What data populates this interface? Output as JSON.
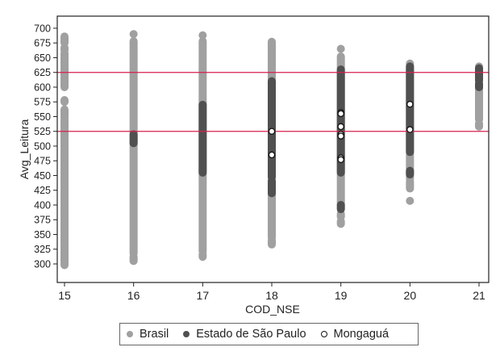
{
  "chart_data": {
    "type": "scatter",
    "title": "",
    "xlabel": "COD_NSE",
    "ylabel": "Avg_Leitura",
    "x_ticks": [
      15,
      16,
      17,
      18,
      19,
      20,
      21
    ],
    "y_ticks": [
      300,
      325,
      350,
      375,
      400,
      425,
      450,
      475,
      500,
      525,
      550,
      575,
      600,
      625,
      650,
      675,
      700
    ],
    "xlim": [
      14.895,
      21.14
    ],
    "ylim": [
      268.5,
      720.5
    ],
    "grid": false,
    "legend_position": "bottom",
    "reference_lines": [
      {
        "axis": "y",
        "value": 625,
        "color": "#d6204f"
      },
      {
        "axis": "y",
        "value": 525,
        "color": "#d6204f"
      }
    ],
    "series": [
      {
        "name": "Brasil",
        "color": "#a0a0a0",
        "marker": "filled-circle",
        "columns": [
          {
            "x": 15,
            "segments": [
              [
                298,
                340
              ],
              [
                340,
                545
              ],
              [
                548,
                562
              ],
              [
                575,
                578
              ],
              [
                600,
                658
              ],
              [
                663,
                667
              ],
              [
                675,
                686
              ]
            ]
          },
          {
            "x": 16,
            "segments": [
              [
                305,
                312
              ],
              [
                318,
                678
              ],
              [
                690,
                690
              ]
            ]
          },
          {
            "x": 17,
            "segments": [
              [
                312,
                316
              ],
              [
                322,
                678
              ],
              [
                688,
                688
              ]
            ]
          },
          {
            "x": 18,
            "segments": [
              [
                333,
                340
              ],
              [
                345,
                677
              ]
            ]
          },
          {
            "x": 19,
            "segments": [
              [
                368,
                372
              ],
              [
                380,
                385
              ],
              [
                400,
                652
              ],
              [
                665,
                665
              ]
            ]
          },
          {
            "x": 20,
            "segments": [
              [
                407,
                407
              ],
              [
                428,
                440
              ],
              [
                445,
                640
              ]
            ]
          },
          {
            "x": 21,
            "segments": [
              [
                533,
                538
              ],
              [
                545,
                635
              ]
            ]
          }
        ]
      },
      {
        "name": "Estado de São Paulo",
        "color": "#505050",
        "marker": "filled-circle",
        "columns": [
          {
            "x": 16,
            "segments": [
              [
                505,
                520
              ]
            ]
          },
          {
            "x": 17,
            "segments": [
              [
                455,
                570
              ]
            ]
          },
          {
            "x": 18,
            "segments": [
              [
                420,
                440
              ],
              [
                448,
                610
              ]
            ]
          },
          {
            "x": 19,
            "segments": [
              [
                393,
                400
              ],
              [
                455,
                630
              ]
            ]
          },
          {
            "x": 20,
            "segments": [
              [
                452,
                458
              ],
              [
                490,
                635
              ]
            ]
          },
          {
            "x": 21,
            "segments": [
              [
                600,
                605
              ],
              [
                612,
                632
              ]
            ]
          }
        ]
      },
      {
        "name": "Mongaguá",
        "color": "#ffffff",
        "marker": "hollow-circle",
        "points": [
          {
            "x": 18,
            "y": 525
          },
          {
            "x": 18,
            "y": 485
          },
          {
            "x": 19,
            "y": 557
          },
          {
            "x": 19,
            "y": 555
          },
          {
            "x": 19,
            "y": 533
          },
          {
            "x": 19,
            "y": 520
          },
          {
            "x": 19,
            "y": 517
          },
          {
            "x": 19,
            "y": 480
          },
          {
            "x": 19,
            "y": 477
          },
          {
            "x": 20,
            "y": 571
          },
          {
            "x": 20,
            "y": 528
          }
        ]
      }
    ]
  },
  "legend": {
    "items": [
      {
        "label": "Brasil",
        "color": "#a0a0a0",
        "style": "filled"
      },
      {
        "label": "Estado de São Paulo",
        "color": "#505050",
        "style": "filled"
      },
      {
        "label": "Mongaguá",
        "color": "#ffffff",
        "style": "hollow"
      }
    ]
  },
  "colors": {
    "reference_line": "#d6204f",
    "axis": "#222222"
  }
}
